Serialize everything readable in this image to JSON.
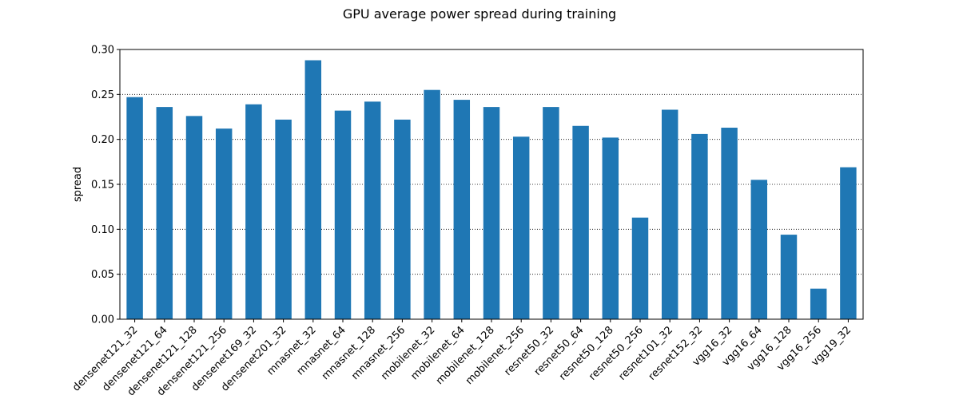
{
  "chart_data": {
    "type": "bar",
    "title": "GPU average power spread during training",
    "xlabel": "",
    "ylabel": "spread",
    "ylim": [
      0,
      0.3
    ],
    "yticks": [
      "0.00",
      "0.05",
      "0.10",
      "0.15",
      "0.20",
      "0.25",
      "0.30"
    ],
    "grid": "y-dotted",
    "bar_color": "#1f77b4",
    "categories": [
      "densenet121_32",
      "densenet121_64",
      "densenet121_128",
      "densenet121_256",
      "densenet169_32",
      "densenet201_32",
      "mnasnet_32",
      "mnasnet_64",
      "mnasnet_128",
      "mnasnet_256",
      "mobilenet_32",
      "mobilenet_64",
      "mobilenet_128",
      "mobilenet_256",
      "resnet50_32",
      "resnet50_64",
      "resnet50_128",
      "resnet50_256",
      "resnet101_32",
      "resnet152_32",
      "vgg16_32",
      "vgg16_64",
      "vgg16_128",
      "vgg16_256",
      "vgg19_32"
    ],
    "values": [
      0.247,
      0.236,
      0.226,
      0.212,
      0.239,
      0.222,
      0.288,
      0.232,
      0.242,
      0.222,
      0.255,
      0.244,
      0.236,
      0.203,
      0.236,
      0.215,
      0.202,
      0.113,
      0.233,
      0.206,
      0.213,
      0.155,
      0.094,
      0.034,
      0.169
    ]
  }
}
